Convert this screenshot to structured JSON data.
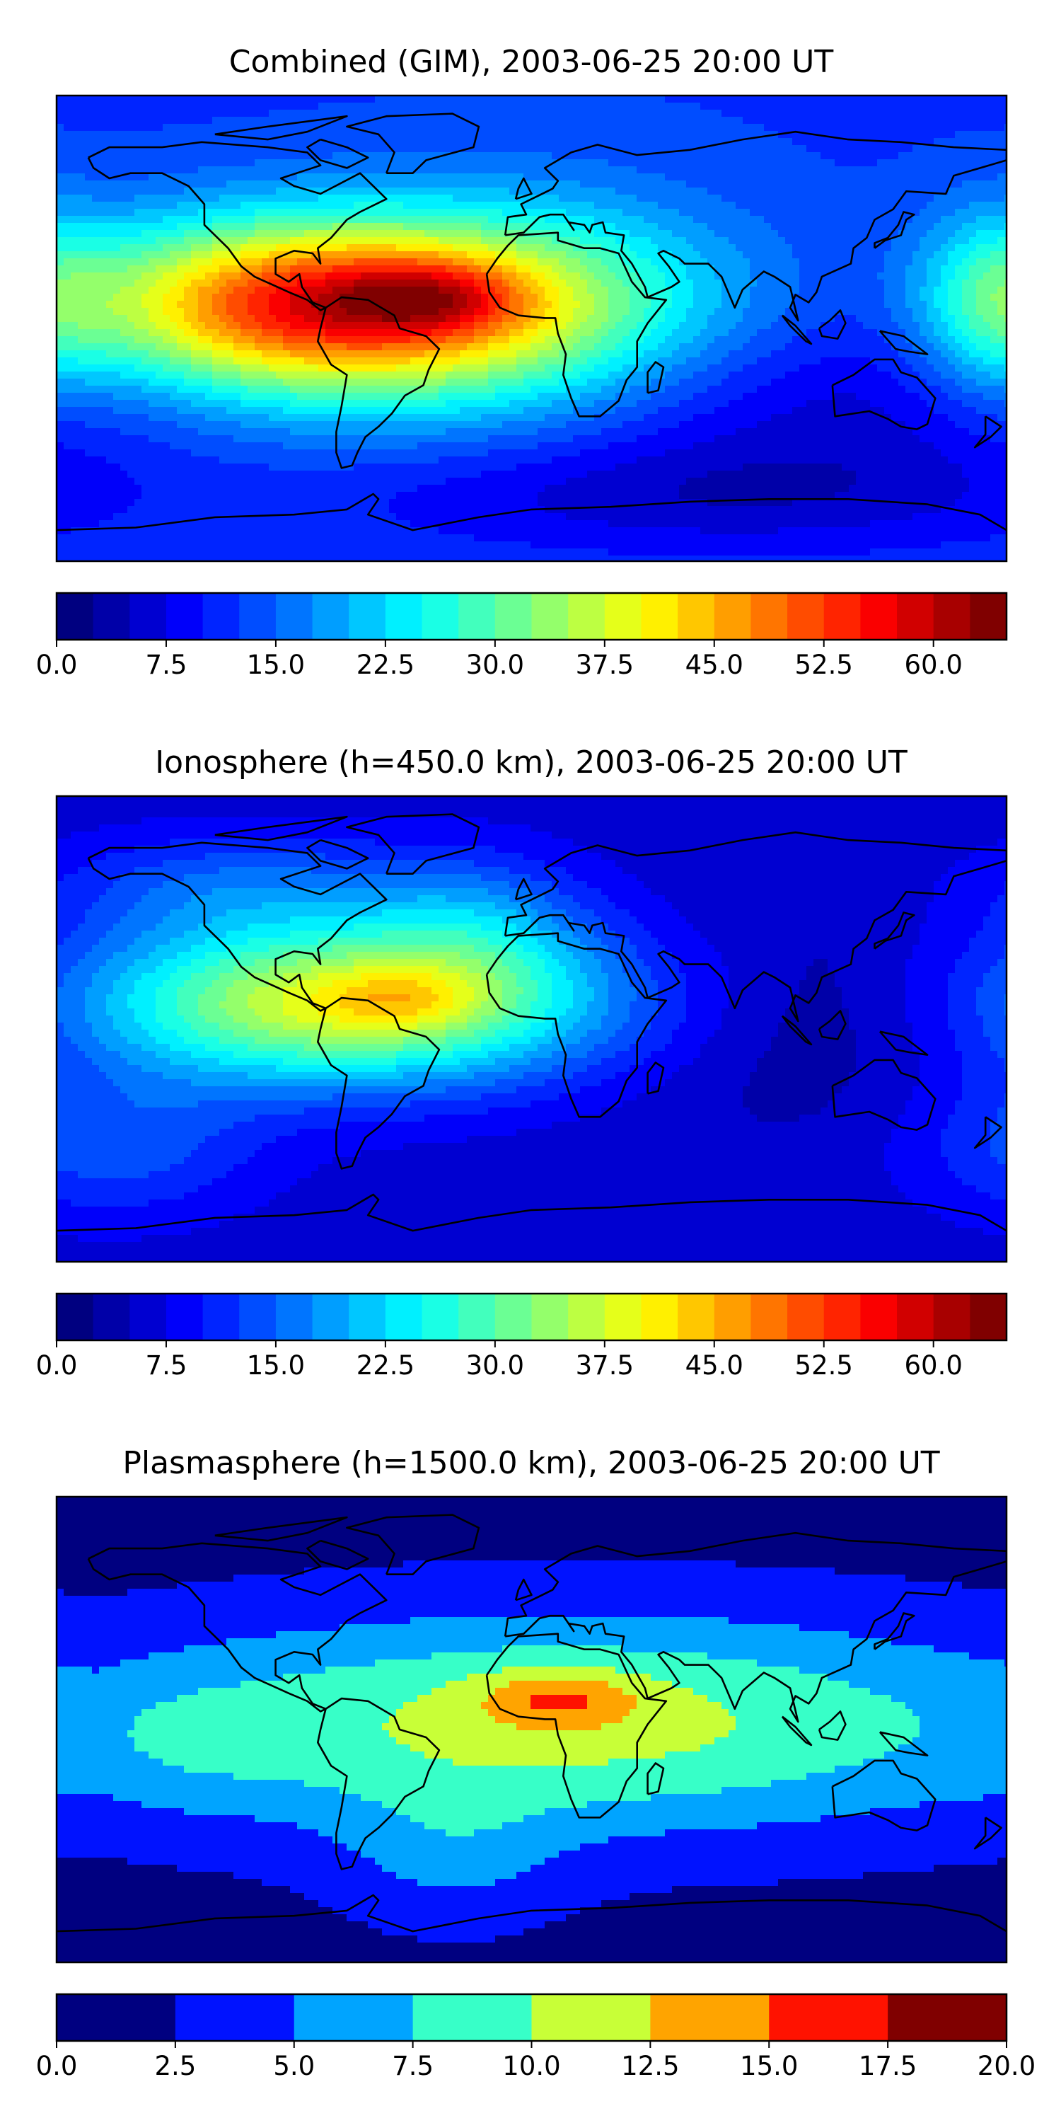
{
  "panels": [
    {
      "id": "combined",
      "title": "Combined (GIM), 2003-06-25 20:00 UT",
      "colorbar": {
        "min": 0,
        "max": 65,
        "step": 2.5,
        "ticks": [
          "0.0",
          "7.5",
          "15.0",
          "22.5",
          "30.0",
          "37.5",
          "45.0",
          "52.5",
          "60.0"
        ],
        "tick_values": [
          0,
          7.5,
          15,
          22.5,
          30,
          37.5,
          45,
          52.5,
          60
        ]
      },
      "background_level": 12,
      "blobs": [
        {
          "lon": -60,
          "lat": 8,
          "slon": 70,
          "slat": 25,
          "amp": 38
        },
        {
          "lon": -40,
          "lat": 12,
          "slon": 25,
          "slat": 10,
          "amp": 12
        },
        {
          "lon": -110,
          "lat": 10,
          "slon": 40,
          "slat": 20,
          "amp": 10
        },
        {
          "lon": 10,
          "lat": 5,
          "slon": 60,
          "slat": 40,
          "amp": 5
        },
        {
          "lon": 175,
          "lat": 10,
          "slon": 20,
          "slat": 25,
          "amp": 12
        },
        {
          "lon": 100,
          "lat": -30,
          "slon": 80,
          "slat": 25,
          "amp": -6
        },
        {
          "lon": 60,
          "lat": -65,
          "slon": 90,
          "slat": 15,
          "amp": -6
        }
      ]
    },
    {
      "id": "ionosphere",
      "title": "Ionosphere  (h=450.0 km), 2003-06-25 20:00 UT",
      "colorbar": {
        "min": 0,
        "max": 65,
        "step": 2.5,
        "ticks": [
          "0.0",
          "7.5",
          "15.0",
          "22.5",
          "30.0",
          "37.5",
          "45.0",
          "52.5",
          "60.0"
        ],
        "tick_values": [
          0,
          7.5,
          15,
          22.5,
          30,
          37.5,
          45,
          52.5,
          60
        ]
      },
      "background_level": 6,
      "blobs": [
        {
          "lon": -70,
          "lat": 10,
          "slon": 70,
          "slat": 22,
          "amp": 33
        },
        {
          "lon": -50,
          "lat": 12,
          "slon": 20,
          "slat": 8,
          "amp": 6
        },
        {
          "lon": -110,
          "lat": 55,
          "slon": 50,
          "slat": 15,
          "amp": 8
        },
        {
          "lon": -20,
          "lat": 40,
          "slon": 30,
          "slat": 20,
          "amp": 8
        },
        {
          "lon": 100,
          "lat": 0,
          "slon": 50,
          "slat": 30,
          "amp": -3
        },
        {
          "lon": -160,
          "lat": -45,
          "slon": 40,
          "slat": 20,
          "amp": 8
        }
      ]
    },
    {
      "id": "plasmasphere",
      "title": "Plasmasphere (h=1500.0 km), 2003-06-25 20:00 UT",
      "colorbar": {
        "min": 0,
        "max": 20,
        "step": 2.5,
        "ticks": [
          "0.0",
          "2.5",
          "5.0",
          "7.5",
          "10.0",
          "12.5",
          "15.0",
          "17.5",
          "20.0"
        ],
        "tick_values": [
          0,
          2.5,
          5,
          7.5,
          10,
          12.5,
          15,
          17.5,
          20
        ]
      },
      "background_level": 1.5,
      "blobs": [
        {
          "lon": 15,
          "lat": 2,
          "slon": 130,
          "slat": 30,
          "amp": 9.5
        },
        {
          "lon": 10,
          "lat": 12,
          "slon": 22,
          "slat": 8,
          "amp": 5
        },
        {
          "lon": -30,
          "lat": -50,
          "slon": 30,
          "slat": 20,
          "amp": 3
        },
        {
          "lon": -140,
          "lat": -5,
          "slon": 40,
          "slat": 20,
          "amp": 2
        }
      ]
    }
  ],
  "colors": {
    "frame": "#000000",
    "coast": "#000000"
  }
}
